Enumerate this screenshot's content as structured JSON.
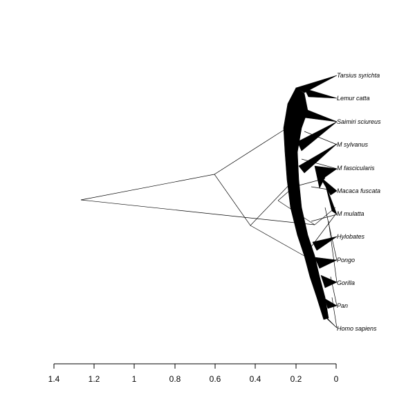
{
  "taxa": [
    "Tarsius syrichta",
    "Lemur catta",
    "Saimiri sciureus",
    "M sylvanus",
    "M fascicularis",
    "Macaca fuscata",
    "M mulatta",
    "Hylobates",
    "Pongo",
    "Gorilla",
    "Pan",
    "Homo sapiens"
  ],
  "axis": {
    "ticks": [
      "1.4",
      "1.2",
      "1",
      "0.8",
      "0.6",
      "0.4",
      "0.2",
      "0"
    ]
  },
  "colors": {
    "ink": "#000000",
    "background": "#ffffff"
  }
}
